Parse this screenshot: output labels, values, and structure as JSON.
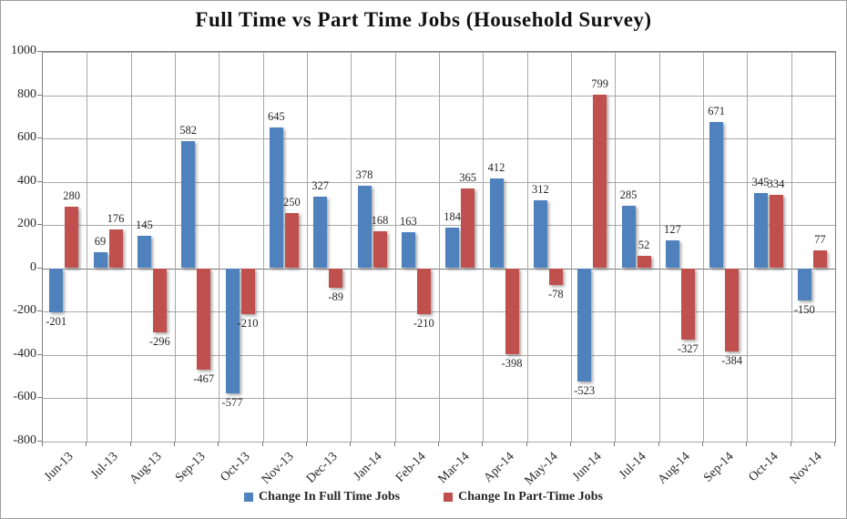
{
  "chart_data": {
    "type": "bar",
    "title": "Full Time vs Part Time Jobs (Household Survey)",
    "categories": [
      "Jun-13",
      "Jul-13",
      "Aug-13",
      "Sep-13",
      "Oct-13",
      "Nov-13",
      "Dec-13",
      "Jan-14",
      "Feb-14",
      "Mar-14",
      "Apr-14",
      "May-14",
      "Jun-14",
      "Jul-14",
      "Aug-14",
      "Sep-14",
      "Oct-14",
      "Nov-14"
    ],
    "series": [
      {
        "name": "Change In Full Time Jobs",
        "color": "#4f81bd",
        "values": [
          -201,
          69,
          145,
          582,
          -577,
          645,
          327,
          378,
          163,
          184,
          412,
          312,
          -523,
          285,
          127,
          671,
          345,
          -150
        ]
      },
      {
        "name": "Change In Part-Time Jobs",
        "color": "#c0504d",
        "values": [
          280,
          176,
          -296,
          -467,
          -210,
          250,
          -89,
          168,
          -210,
          365,
          -398,
          -78,
          799,
          52,
          -327,
          -384,
          334,
          77
        ]
      }
    ],
    "ylim": [
      -800,
      1000
    ],
    "yticks": [
      1000,
      800,
      600,
      400,
      200,
      0,
      -200,
      -400,
      -600,
      -800
    ],
    "grid": true,
    "legend_position": "bottom",
    "data_labels": true,
    "xlabel": "",
    "ylabel": ""
  }
}
